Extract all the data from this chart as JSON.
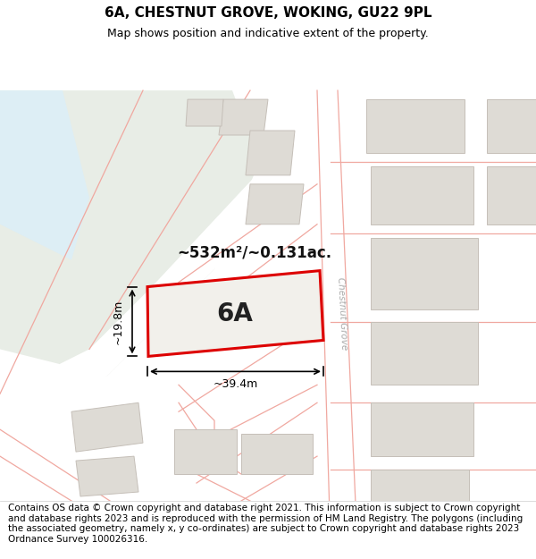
{
  "title_line1": "6A, CHESTNUT GROVE, WOKING, GU22 9PL",
  "title_line2": "Map shows position and indicative extent of the property.",
  "footer_text": "Contains OS data © Crown copyright and database right 2021. This information is subject to Crown copyright and database rights 2023 and is reproduced with the permission of HM Land Registry. The polygons (including the associated geometry, namely x, y co-ordinates) are subject to Crown copyright and database rights 2023 Ordnance Survey 100026316.",
  "area_label": "~532m²/~0.131ac.",
  "property_label": "6A",
  "width_label": "~39.4m",
  "height_label": "~19.8m",
  "street_label": "Chestnut Grove",
  "map_bg": "#f2f0eb",
  "water_color": "#ddeef5",
  "green_color": "#e8ede6",
  "building_fill": "#dedbd5",
  "building_edge": "#c5bfb8",
  "road_fill": "#ffffff",
  "road_edge": "#f0a8a0",
  "property_fill": "#f2f0eb",
  "property_edge": "#dd0000",
  "dim_color": "#111111",
  "title_fontsize": 11,
  "subtitle_fontsize": 9,
  "footer_fontsize": 7.5
}
